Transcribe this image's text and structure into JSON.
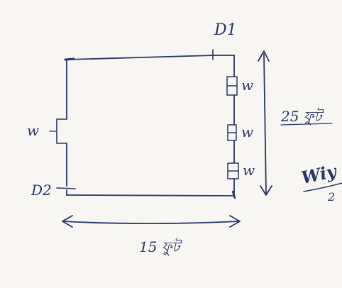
{
  "diagram": {
    "labels": {
      "door_top": "D1",
      "door_left": "D2",
      "window_left": "w",
      "window_right_1": "w",
      "window_right_2": "w",
      "window_right_3": "w",
      "height_dim": "25 ফুট",
      "width_dim": "15 ফুট",
      "side_note": "Wiy",
      "side_note_denominator": "2"
    },
    "colors": {
      "ink": "#2a3566",
      "paper": "#f7f6f3"
    }
  }
}
